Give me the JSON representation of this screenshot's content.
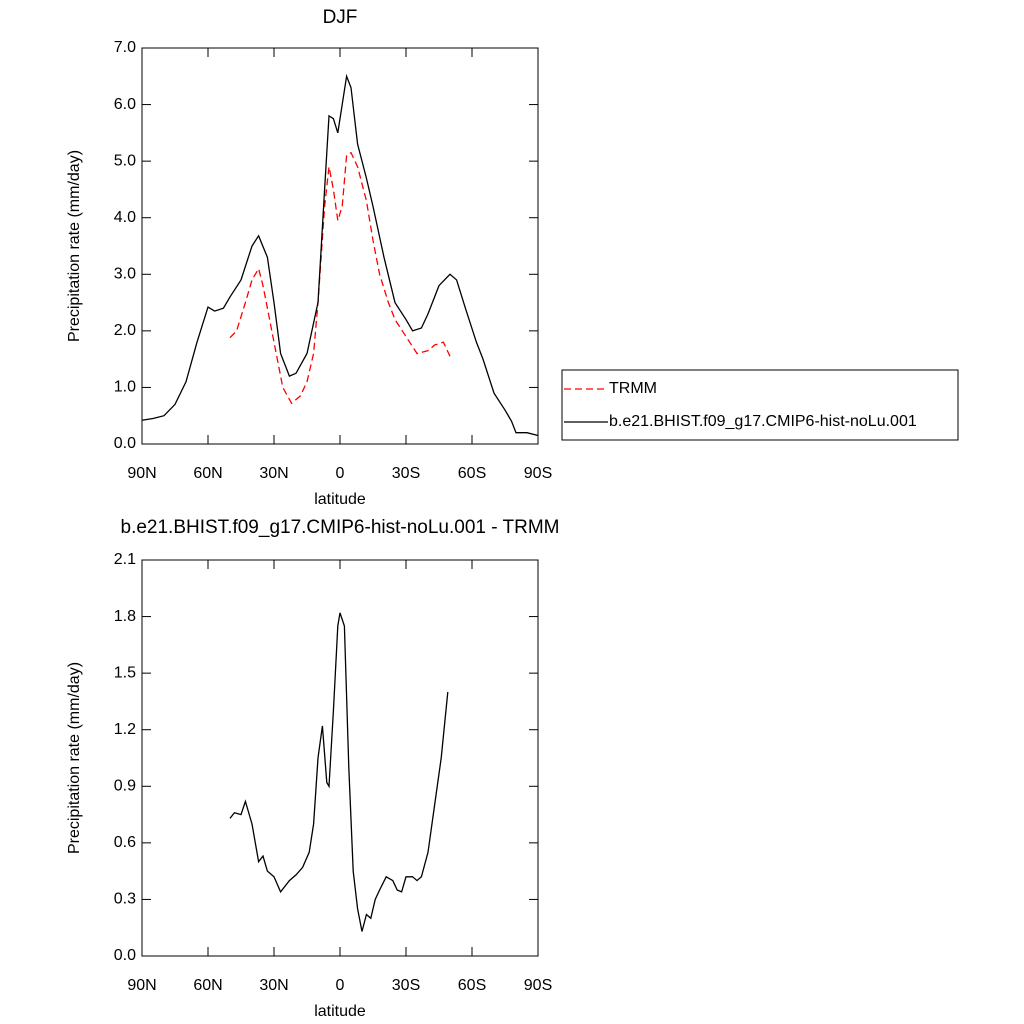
{
  "chart_data": [
    {
      "type": "line",
      "title": "DJF",
      "xlabel": "latitude",
      "ylabel": "Precipitation rate (mm/day)",
      "xlim": [
        90,
        -90
      ],
      "xticks": [
        {
          "value": 90,
          "label": "90N"
        },
        {
          "value": 60,
          "label": "60N"
        },
        {
          "value": 30,
          "label": "30N"
        },
        0,
        {
          "value": -30,
          "label": "30S"
        },
        {
          "value": -60,
          "label": "60S"
        },
        {
          "value": -90,
          "label": "90S"
        }
      ],
      "ylim": [
        0,
        7
      ],
      "yticks": [
        {
          "value": 0,
          "label": "0.0"
        },
        {
          "value": 1,
          "label": "1.0"
        },
        {
          "value": 2,
          "label": "2.0"
        },
        {
          "value": 3,
          "label": "3.0"
        },
        {
          "value": 4,
          "label": "4.0"
        },
        {
          "value": 5,
          "label": "5.0"
        },
        {
          "value": 6,
          "label": "6.0"
        },
        {
          "value": 7,
          "label": "7.0"
        }
      ],
      "legend": "outside-right",
      "series": [
        {
          "name": "TRMM",
          "color": "#ff0000",
          "line_style": "dashed",
          "x": [
            50,
            47,
            43,
            40,
            37,
            35,
            30,
            26,
            22,
            18,
            15,
            12,
            10,
            7,
            5,
            3,
            1,
            -1,
            -3,
            -5,
            -8,
            -12,
            -15,
            -18,
            -22,
            -25,
            -30,
            -35,
            -40,
            -43,
            -47,
            -50
          ],
          "values": [
            1.88,
            2.0,
            2.5,
            2.9,
            3.1,
            2.8,
            1.8,
            1.0,
            0.72,
            0.85,
            1.1,
            1.6,
            2.5,
            4.2,
            4.9,
            4.5,
            3.95,
            4.2,
            5.1,
            5.15,
            4.9,
            4.3,
            3.6,
            3.0,
            2.5,
            2.2,
            1.9,
            1.6,
            1.65,
            1.75,
            1.8,
            1.55
          ]
        },
        {
          "name": "b.e21.BHIST.f09_g17.CMIP6-hist-noLu.001",
          "color": "#000000",
          "line_style": "solid",
          "x": [
            90,
            85,
            80,
            75,
            70,
            65,
            60,
            57,
            53,
            50,
            45,
            40,
            37,
            33,
            30,
            27,
            23,
            20,
            15,
            10,
            7,
            5,
            3,
            1,
            -1,
            -3,
            -5,
            -8,
            -12,
            -15,
            -20,
            -25,
            -30,
            -33,
            -37,
            -40,
            -45,
            -50,
            -53,
            -57,
            -62,
            -65,
            -70,
            -75,
            -78,
            -80,
            -85,
            -90
          ],
          "values": [
            0.42,
            0.45,
            0.5,
            0.7,
            1.1,
            1.8,
            2.42,
            2.35,
            2.4,
            2.6,
            2.9,
            3.5,
            3.68,
            3.3,
            2.5,
            1.6,
            1.2,
            1.25,
            1.6,
            2.5,
            4.5,
            5.8,
            5.75,
            5.5,
            6.0,
            6.5,
            6.3,
            5.3,
            4.7,
            4.2,
            3.3,
            2.5,
            2.2,
            2.0,
            2.05,
            2.3,
            2.8,
            3.0,
            2.9,
            2.4,
            1.8,
            1.5,
            0.9,
            0.6,
            0.4,
            0.2,
            0.2,
            0.15
          ]
        }
      ]
    },
    {
      "type": "line",
      "title": "b.e21.BHIST.f09_g17.CMIP6-hist-noLu.001 - TRMM",
      "xlabel": "latitude",
      "ylabel": "Precipitation rate (mm/day)",
      "xlim": [
        90,
        -90
      ],
      "xticks": [
        {
          "value": 90,
          "label": "90N"
        },
        {
          "value": 60,
          "label": "60N"
        },
        {
          "value": 30,
          "label": "30N"
        },
        0,
        {
          "value": -30,
          "label": "30S"
        },
        {
          "value": -60,
          "label": "60S"
        },
        {
          "value": -90,
          "label": "90S"
        }
      ],
      "ylim": [
        0,
        2.1
      ],
      "yticks": [
        {
          "value": 0,
          "label": "0.0"
        },
        0.3,
        0.6,
        0.9,
        1.2,
        1.5,
        1.8,
        2.1
      ],
      "series": [
        {
          "color": "#000000",
          "line_style": "solid",
          "x": [
            50,
            48,
            45,
            43,
            40,
            37,
            35,
            33,
            30,
            27,
            23,
            20,
            17,
            14,
            12,
            10,
            8,
            6,
            5,
            3,
            1,
            0,
            -2,
            -4,
            -6,
            -8,
            -10,
            -12,
            -14,
            -16,
            -18,
            -21,
            -24,
            -26,
            -28,
            -30,
            -33,
            -35,
            -37,
            -40,
            -43,
            -46,
            -49
          ],
          "values": [
            0.73,
            0.76,
            0.75,
            0.82,
            0.7,
            0.5,
            0.53,
            0.45,
            0.42,
            0.34,
            0.4,
            0.43,
            0.47,
            0.55,
            0.7,
            1.05,
            1.22,
            0.92,
            0.9,
            1.3,
            1.75,
            1.82,
            1.75,
            1.0,
            0.45,
            0.25,
            0.13,
            0.22,
            0.2,
            0.3,
            0.35,
            0.42,
            0.4,
            0.35,
            0.34,
            0.42,
            0.42,
            0.4,
            0.42,
            0.55,
            0.8,
            1.05,
            1.4
          ]
        }
      ]
    }
  ]
}
